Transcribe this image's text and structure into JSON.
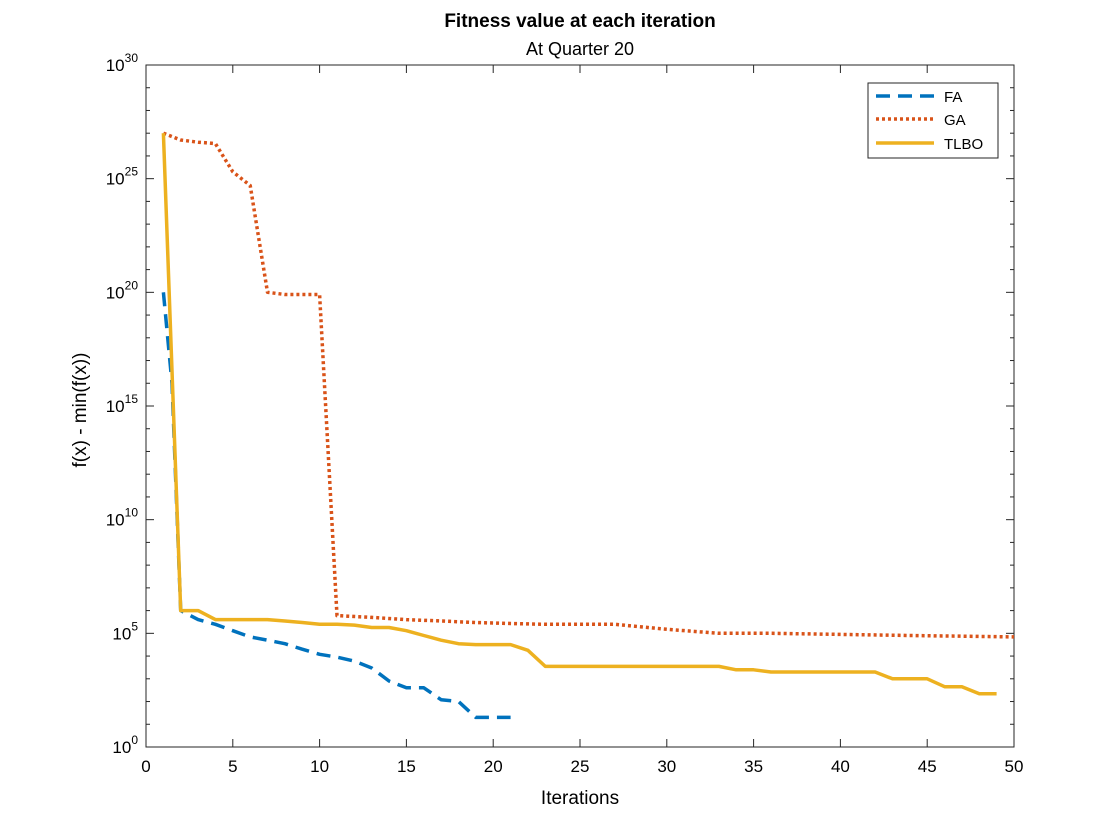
{
  "chart_data": {
    "type": "line",
    "title": "Fitness value at each iteration",
    "subtitle": "At Quarter 20",
    "xlabel": "Iterations",
    "ylabel": "f(x) - min(f(x))",
    "xlim": [
      0,
      50
    ],
    "ylim": [
      1,
      1e+30
    ],
    "yscale": "log",
    "grid": false,
    "legend_position": "top-right",
    "x_ticks": [
      "0",
      "5",
      "10",
      "15",
      "20",
      "25",
      "30",
      "35",
      "40",
      "45",
      "50"
    ],
    "y_ticks": [
      {
        "base": "10",
        "exp": "0"
      },
      {
        "base": "10",
        "exp": "5"
      },
      {
        "base": "10",
        "exp": "10"
      },
      {
        "base": "10",
        "exp": "15"
      },
      {
        "base": "10",
        "exp": "20"
      },
      {
        "base": "10",
        "exp": "25"
      },
      {
        "base": "10",
        "exp": "30"
      }
    ],
    "series": [
      {
        "name": "FA",
        "color": "#0072BD",
        "style": "dashed",
        "x": [
          1,
          1.5,
          2,
          3,
          4,
          5,
          6,
          7,
          8,
          9,
          10,
          11,
          12,
          13,
          14,
          15,
          16,
          17,
          18,
          19,
          20,
          21
        ],
        "y": [
          1e+20,
          1e+16,
          1000000.0,
          400000.0,
          250000.0,
          130000.0,
          70000.0,
          50000.0,
          35000.0,
          20000.0,
          12000.0,
          9000.0,
          6000.0,
          3000.0,
          800.0,
          400.0,
          400.0,
          120.0,
          100.0,
          20.0,
          20.0,
          20.0
        ]
      },
      {
        "name": "GA",
        "color": "#D95319",
        "style": "dotted",
        "x": [
          1,
          2,
          3,
          4,
          5,
          6,
          7,
          8,
          9,
          10,
          11,
          13,
          15,
          17,
          19,
          21,
          23,
          27,
          30,
          33,
          36,
          40,
          44,
          50
        ],
        "y": [
          1e+27,
          5e+26,
          4e+26,
          3.5e+26,
          2e+25,
          5e+24,
          1e+20,
          8e+19,
          8e+19,
          8e+19,
          600000.0,
          500000.0,
          400000.0,
          350000.0,
          300000.0,
          270000.0,
          250000.0,
          250000.0,
          150000.0,
          100000.0,
          100000.0,
          90000.0,
          80000.0,
          70000.0
        ]
      },
      {
        "name": "TLBO",
        "color": "#EDB120",
        "style": "solid",
        "x": [
          1,
          2,
          3,
          4,
          5,
          6,
          7,
          8,
          9,
          10,
          11,
          12,
          13,
          14,
          15,
          16,
          17,
          18,
          19,
          20,
          21,
          22,
          23,
          28,
          33,
          34,
          35,
          36,
          42,
          43,
          45,
          46,
          47,
          48,
          49
        ],
        "y": [
          1e+27,
          1000000.0,
          1000000.0,
          400000.0,
          400000.0,
          400000.0,
          400000.0,
          350000.0,
          300000.0,
          250000.0,
          250000.0,
          230000.0,
          180000.0,
          180000.0,
          130000.0,
          80000.0,
          50000.0,
          35000.0,
          32000.0,
          32000.0,
          32000.0,
          18000.0,
          3500.0,
          3500.0,
          3500.0,
          2500.0,
          2500.0,
          2000.0,
          2000.0,
          1000.0,
          1000.0,
          450.0,
          450.0,
          220.0,
          220.0
        ]
      }
    ]
  }
}
